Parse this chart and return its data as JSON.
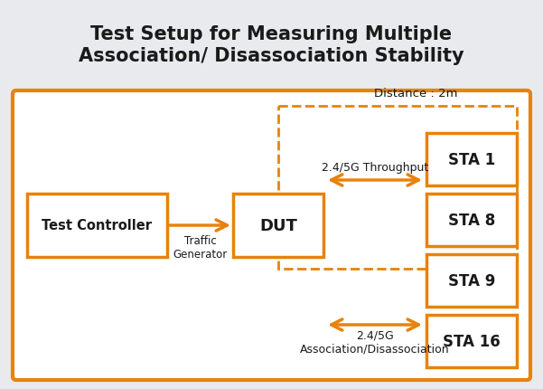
{
  "title_line1": "Test Setup for Measuring Multiple",
  "title_line2": "Association/ Disassociation Stability",
  "title_fontsize": 15,
  "background_color": "#e8eaed",
  "box_bg": "#ffffff",
  "orange_color": "#E8820C",
  "black_color": "#1a1a1a",
  "tc_label": "Test Controller",
  "dut_label": "DUT",
  "sta1_label": "STA 1",
  "sta8_label": "STA 8",
  "sta9_label": "STA 9",
  "sta16_label": "STA 16",
  "traffic_gen_label": "Traffic\nGenerator",
  "distance_label": "Distance : 2m",
  "throughput_label": "2.4/5G Throughput",
  "assoc_label": "2.4/5G\nAssociation/Disassociation"
}
